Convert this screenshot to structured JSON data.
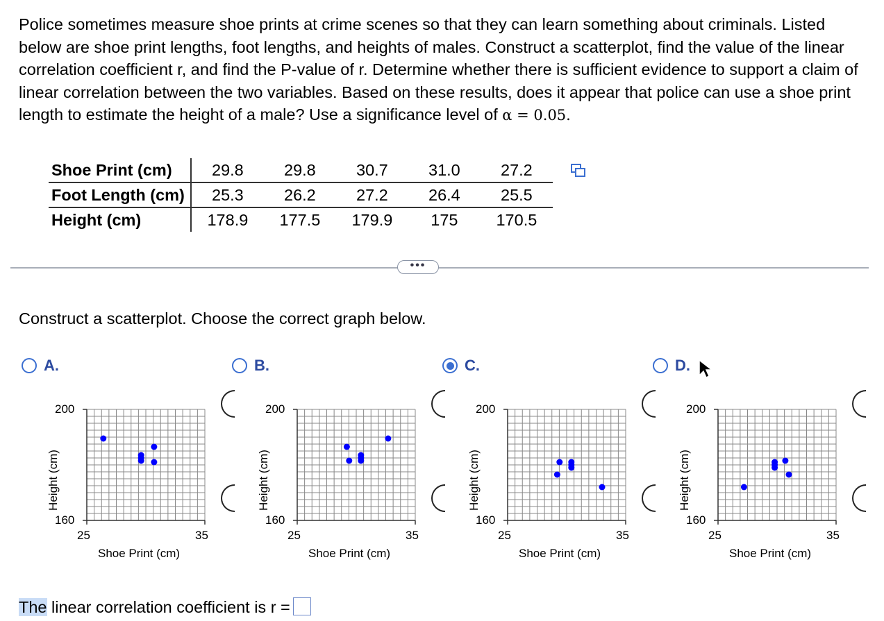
{
  "problem": {
    "text": "Police sometimes measure shoe prints at crime scenes so that they can learn something about criminals. Listed below are shoe print lengths, foot lengths, and heights of males. Construct a scatterplot, find the value of the linear correlation coefficient r, and find the P-value of r. Determine whether there is sufficient evidence to support a claim of linear correlation between the two variables. Based on these results, does it appear that police can use a shoe print length to estimate the height of a male? Use a significance level of ",
    "alpha_text": "α = 0.05."
  },
  "table": {
    "rows": [
      {
        "label": "Shoe Print (cm)",
        "values": [
          "29.8",
          "29.8",
          "30.7",
          "31.0",
          "27.2"
        ]
      },
      {
        "label": "Foot Length (cm)",
        "values": [
          "25.3",
          "26.2",
          "27.2",
          "26.4",
          "25.5"
        ]
      },
      {
        "label": "Height (cm)",
        "values": [
          "178.9",
          "177.5",
          "179.9",
          "175",
          "170.5"
        ]
      }
    ]
  },
  "more_button": "•••",
  "question": "Construct a scatterplot. Choose the correct graph below.",
  "options": [
    {
      "label": "A.",
      "selected": false
    },
    {
      "label": "B.",
      "selected": false
    },
    {
      "label": "C.",
      "selected": true
    },
    {
      "label": "D.",
      "selected": false
    }
  ],
  "answer": {
    "highlight": "The",
    "text": " linear correlation coefficient is r ="
  },
  "colors": {
    "accent": "#3b6fd1",
    "point": "#0000ff",
    "grid": "#888888"
  },
  "chart_data": [
    {
      "type": "scatter",
      "option": "A",
      "xlabel": "Shoe Print (cm)",
      "ylabel": "Height (cm)",
      "xlim": [
        25,
        35
      ],
      "ylim": [
        160,
        200
      ],
      "x_ticks": [
        "25",
        "35"
      ],
      "y_ticks": [
        "160",
        "200"
      ],
      "grid": true,
      "points": [
        [
          26.4,
          189.5
        ],
        [
          29.6,
          181.5
        ],
        [
          29.6,
          182.5
        ],
        [
          29.6,
          183.5
        ],
        [
          30.7,
          186.5
        ],
        [
          30.7,
          181.0
        ]
      ]
    },
    {
      "type": "scatter",
      "option": "B",
      "xlabel": "Shoe Print (cm)",
      "ylabel": "Height (cm)",
      "xlim": [
        25,
        35
      ],
      "ylim": [
        160,
        200
      ],
      "x_ticks": [
        "25",
        "35"
      ],
      "y_ticks": [
        "160",
        "200"
      ],
      "grid": true,
      "points": [
        [
          29.2,
          186.5
        ],
        [
          29.4,
          181.5
        ],
        [
          30.4,
          181.5
        ],
        [
          30.4,
          182.5
        ],
        [
          30.4,
          183.5
        ],
        [
          32.7,
          189.5
        ]
      ]
    },
    {
      "type": "scatter",
      "option": "C",
      "xlabel": "Shoe Print (cm)",
      "ylabel": "Height (cm)",
      "xlim": [
        25,
        35
      ],
      "ylim": [
        160,
        200
      ],
      "x_ticks": [
        "25",
        "35"
      ],
      "y_ticks": [
        "160",
        "200"
      ],
      "grid": true,
      "points": [
        [
          29.2,
          176.5
        ],
        [
          29.4,
          181.0
        ],
        [
          30.4,
          179.0
        ],
        [
          30.4,
          180.0
        ],
        [
          30.4,
          181.0
        ],
        [
          33.0,
          172.0
        ]
      ]
    },
    {
      "type": "scatter",
      "option": "D",
      "xlabel": "Shoe Print (cm)",
      "ylabel": "Height (cm)",
      "xlim": [
        25,
        35
      ],
      "ylim": [
        160,
        200
      ],
      "x_ticks": [
        "25",
        "35"
      ],
      "y_ticks": [
        "160",
        "200"
      ],
      "grid": true,
      "points": [
        [
          27.2,
          172.0
        ],
        [
          29.8,
          179.0
        ],
        [
          29.8,
          180.0
        ],
        [
          29.8,
          181.0
        ],
        [
          30.7,
          181.5
        ],
        [
          31.0,
          176.5
        ]
      ]
    }
  ]
}
